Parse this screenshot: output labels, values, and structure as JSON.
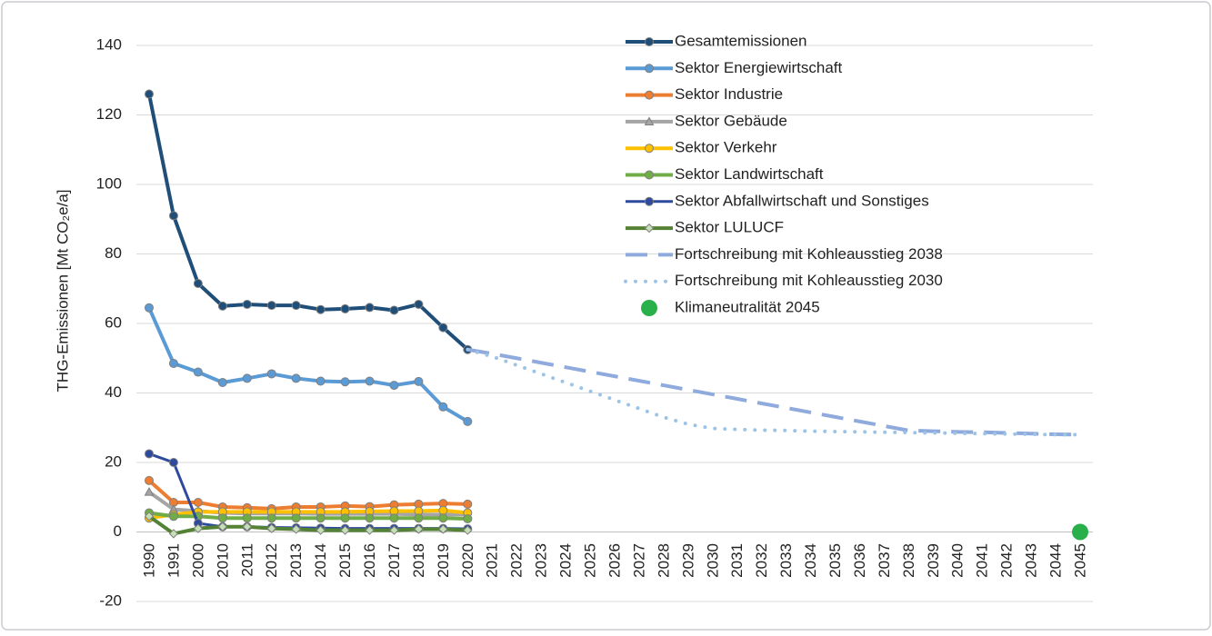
{
  "chart_data": {
    "type": "line",
    "y_label": "THG-Emissionen  [Mt CO₂e/a]",
    "categories": [
      "1990",
      "1991",
      "2000",
      "2010",
      "2011",
      "2012",
      "2013",
      "2014",
      "2015",
      "2016",
      "2017",
      "2018",
      "2019",
      "2020",
      "2021",
      "2022",
      "2023",
      "2024",
      "2025",
      "2026",
      "2027",
      "2028",
      "2029",
      "2030",
      "2031",
      "2032",
      "2033",
      "2034",
      "2035",
      "2036",
      "2037",
      "2038",
      "2039",
      "2040",
      "2041",
      "2042",
      "2043",
      "2044",
      "2045"
    ],
    "ylim": [
      -20,
      140
    ],
    "yticks": [
      -20,
      0,
      20,
      40,
      60,
      80,
      100,
      120,
      140
    ],
    "grid": true,
    "series": [
      {
        "name": "Gesamtemissionen",
        "color": "#1f4e79",
        "width": 4,
        "marker": "circle",
        "dash": null,
        "values": [
          126,
          91,
          71.5,
          65,
          65.5,
          65.2,
          65.2,
          64,
          64.2,
          64.6,
          63.8,
          65.5,
          58.8,
          52.5,
          null,
          null,
          null,
          null,
          null,
          null,
          null,
          null,
          null,
          null,
          null,
          null,
          null,
          null,
          null,
          null,
          null,
          null,
          null,
          null,
          null,
          null,
          null,
          null,
          null
        ]
      },
      {
        "name": "Sektor Energiewirtschaft",
        "color": "#5b9bd5",
        "width": 4,
        "marker": "circle",
        "dash": null,
        "values": [
          64.5,
          48.5,
          46,
          43,
          44.2,
          45.5,
          44.2,
          43.4,
          43.2,
          43.4,
          42.2,
          43.3,
          36,
          31.8,
          null,
          null,
          null,
          null,
          null,
          null,
          null,
          null,
          null,
          null,
          null,
          null,
          null,
          null,
          null,
          null,
          null,
          null,
          null,
          null,
          null,
          null,
          null,
          null,
          null
        ]
      },
      {
        "name": "Sektor Industrie",
        "color": "#ed7d31",
        "width": 4,
        "marker": "circle",
        "dash": null,
        "values": [
          14.8,
          8.5,
          8.5,
          7.2,
          7,
          6.7,
          7.2,
          7.2,
          7.5,
          7.3,
          7.8,
          8,
          8.2,
          8,
          null,
          null,
          null,
          null,
          null,
          null,
          null,
          null,
          null,
          null,
          null,
          null,
          null,
          null,
          null,
          null,
          null,
          null,
          null,
          null,
          null,
          null,
          null,
          null,
          null
        ]
      },
      {
        "name": "Sektor Gebäude",
        "color": "#a5a5a5",
        "width": 4,
        "marker": "triangle",
        "dash": null,
        "values": [
          11.5,
          6.5,
          6,
          5.5,
          5.3,
          5.3,
          5.3,
          5.2,
          5.2,
          5.2,
          5.2,
          5,
          5,
          5,
          null,
          null,
          null,
          null,
          null,
          null,
          null,
          null,
          null,
          null,
          null,
          null,
          null,
          null,
          null,
          null,
          null,
          null,
          null,
          null,
          null,
          null,
          null,
          null,
          null
        ]
      },
      {
        "name": "Sektor Verkehr",
        "color": "#ffc000",
        "width": 4,
        "marker": "circle",
        "dash": null,
        "values": [
          4,
          5,
          5.8,
          5.8,
          5.8,
          5.8,
          5.8,
          5.8,
          5.8,
          5.9,
          6,
          6,
          6.2,
          5.5,
          null,
          null,
          null,
          null,
          null,
          null,
          null,
          null,
          null,
          null,
          null,
          null,
          null,
          null,
          null,
          null,
          null,
          null,
          null,
          null,
          null,
          null,
          null,
          null,
          null
        ]
      },
      {
        "name": "Sektor Landwirtschaft",
        "color": "#70ad47",
        "width": 4,
        "marker": "circle",
        "dash": null,
        "values": [
          5.5,
          4.5,
          4.5,
          4,
          4,
          4,
          4,
          4,
          4,
          4,
          4,
          4,
          4,
          3.8,
          null,
          null,
          null,
          null,
          null,
          null,
          null,
          null,
          null,
          null,
          null,
          null,
          null,
          null,
          null,
          null,
          null,
          null,
          null,
          null,
          null,
          null,
          null,
          null,
          null
        ]
      },
      {
        "name": "Sektor Abfallwirtschaft und Sonstiges",
        "color": "#2e4a9e",
        "width": 3,
        "marker": "circle",
        "dash": null,
        "values": [
          22.5,
          20,
          2.5,
          1.5,
          1.5,
          1.3,
          1.2,
          1.1,
          1,
          1,
          1,
          1,
          1,
          0.9,
          null,
          null,
          null,
          null,
          null,
          null,
          null,
          null,
          null,
          null,
          null,
          null,
          null,
          null,
          null,
          null,
          null,
          null,
          null,
          null,
          null,
          null,
          null,
          null,
          null
        ]
      },
      {
        "name": "Sektor LULUCF",
        "color": "#548235",
        "width": 4,
        "marker": "diamond",
        "dash": null,
        "values": [
          4.5,
          -0.5,
          1,
          1.5,
          1.5,
          1,
          0.8,
          0.5,
          0.5,
          0.5,
          0.5,
          0.8,
          0.8,
          0.5,
          null,
          null,
          null,
          null,
          null,
          null,
          null,
          null,
          null,
          null,
          null,
          null,
          null,
          null,
          null,
          null,
          null,
          null,
          null,
          null,
          null,
          null,
          null,
          null,
          null
        ]
      },
      {
        "name": "Fortschreibung mit Kohleausstieg 2038",
        "color": "#8faadc",
        "width": 4,
        "marker": "none",
        "dash": "dashed",
        "values": [
          null,
          null,
          null,
          null,
          null,
          null,
          null,
          null,
          null,
          null,
          null,
          null,
          null,
          52.5,
          51.3,
          50,
          48.7,
          47.4,
          46.1,
          44.8,
          43.5,
          42.2,
          40.9,
          39.6,
          38.3,
          37,
          35.7,
          34.4,
          33.1,
          31.8,
          30.5,
          29.2,
          29,
          28.8,
          28.7,
          28.5,
          28.3,
          28.1,
          28
        ]
      },
      {
        "name": "Fortschreibung mit Kohleausstieg 2030",
        "color": "#9dc3e6",
        "width": 4,
        "marker": "none",
        "dash": "dotted",
        "values": [
          null,
          null,
          null,
          null,
          null,
          null,
          null,
          null,
          null,
          null,
          null,
          null,
          null,
          52.5,
          50.5,
          48,
          45.5,
          43,
          40.5,
          38,
          35.5,
          33,
          31,
          29.8,
          29.5,
          29.3,
          29.2,
          29,
          28.9,
          28.8,
          28.7,
          28.6,
          28.5,
          28.4,
          28.3,
          28.2,
          28.1,
          28,
          28
        ]
      },
      {
        "name": "Klimaneutralität 2045",
        "color": "#2ab04a",
        "width": 0,
        "marker": "circle",
        "dash": null,
        "values": [
          null,
          null,
          null,
          null,
          null,
          null,
          null,
          null,
          null,
          null,
          null,
          null,
          null,
          null,
          null,
          null,
          null,
          null,
          null,
          null,
          null,
          null,
          null,
          null,
          null,
          null,
          null,
          null,
          null,
          null,
          null,
          null,
          null,
          null,
          null,
          null,
          null,
          null,
          0
        ]
      }
    ]
  }
}
